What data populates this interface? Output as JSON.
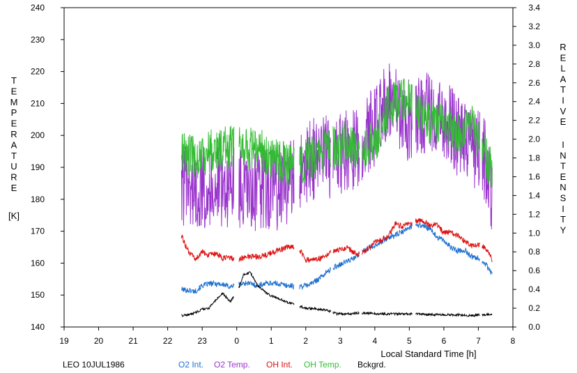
{
  "chart_data": {
    "type": "line",
    "title": "",
    "xlabel": "Local Standard Time [h]",
    "ylabel_left": "TEMPERATURE [K]",
    "ylabel_left_letters": [
      "T",
      "E",
      "M",
      "P",
      "E",
      "R",
      "A",
      "T",
      "U",
      "R",
      "E"
    ],
    "ylabel_left_unit": "[K]",
    "ylabel_right_letters_1": [
      "R",
      "E",
      "L",
      "A",
      "T",
      "I",
      "V",
      "E"
    ],
    "ylabel_right_letters_2": [
      "I",
      "N",
      "T",
      "E",
      "N",
      "S",
      "I",
      "T",
      "Y"
    ],
    "xlim": [
      19,
      32
    ],
    "x_tick_values": [
      19,
      20,
      21,
      22,
      23,
      24,
      25,
      26,
      27,
      28,
      29,
      30,
      31,
      32
    ],
    "x_tick_labels": [
      "19",
      "20",
      "21",
      "22",
      "23",
      "0",
      "1",
      "2",
      "3",
      "4",
      "5",
      "6",
      "7",
      "8"
    ],
    "ylim_left": [
      140,
      240
    ],
    "y_left_ticks": [
      "140",
      "150",
      "160",
      "170",
      "180",
      "190",
      "200",
      "210",
      "220",
      "230",
      "240"
    ],
    "ylim_right": [
      0,
      3.4
    ],
    "y_right_ticks": [
      "0.0",
      "0.2",
      "0.4",
      "0.6",
      "0.8",
      "1.0",
      "1.2",
      "1.4",
      "1.6",
      "1.8",
      "2.0",
      "2.2",
      "2.4",
      "2.6",
      "2.8",
      "3.0",
      "3.2",
      "3.4"
    ],
    "grid": false,
    "station_label": "LEO 10JUL1986",
    "series": [
      {
        "name": "O2 Int.",
        "axis": "right",
        "color": "#1c6fd1",
        "noise": 0.03,
        "x": [
          22.4,
          22.8,
          23.0,
          23.2,
          23.5,
          23.8,
          24.0,
          24.3,
          24.6,
          24.9,
          25.2,
          25.5,
          25.8,
          26.0,
          26.2,
          26.4,
          26.6,
          26.8,
          27.0,
          27.2,
          27.4,
          27.6,
          27.8,
          28.0,
          28.2,
          28.4,
          28.6,
          28.8,
          29.0,
          29.2,
          29.4,
          29.6,
          29.8,
          30.0,
          30.2,
          30.4,
          30.6,
          30.8,
          31.0,
          31.2,
          31.4
        ],
        "y": [
          0.4,
          0.38,
          0.44,
          0.46,
          0.46,
          0.43,
          0.45,
          0.47,
          0.44,
          0.47,
          0.46,
          0.44,
          0.43,
          0.44,
          0.47,
          0.52,
          0.58,
          0.63,
          0.67,
          0.7,
          0.73,
          0.79,
          0.84,
          0.87,
          0.91,
          0.95,
          0.98,
          1.01,
          1.06,
          1.09,
          1.08,
          1.04,
          0.96,
          0.92,
          0.85,
          0.81,
          0.82,
          0.75,
          0.74,
          0.67,
          0.56
        ],
        "gaps": [
          [
            23.92,
            24.06
          ],
          [
            25.66,
            25.82
          ],
          [
            26.72,
            26.78
          ],
          [
            27.55,
            27.62
          ],
          [
            29.08,
            29.18
          ],
          [
            31.04,
            31.1
          ]
        ]
      },
      {
        "name": "O2 Temp.",
        "axis": "left",
        "color": "#9933cc",
        "noise": 13,
        "x": [
          22.4,
          22.8,
          23.2,
          23.6,
          24.0,
          24.4,
          24.8,
          25.2,
          25.6,
          26.0,
          26.4,
          26.8,
          27.2,
          27.6,
          28.0,
          28.4,
          28.8,
          29.2,
          29.6,
          30.0,
          30.4,
          30.8,
          31.0,
          31.2,
          31.4
        ],
        "y": [
          185,
          183,
          184,
          184,
          184,
          181,
          184,
          183,
          186,
          191,
          194,
          193,
          195,
          197,
          203,
          213,
          205,
          205,
          208,
          206,
          200,
          196,
          195,
          192,
          182
        ],
        "gaps": [
          [
            23.92,
            24.06
          ],
          [
            25.66,
            25.82
          ],
          [
            26.72,
            26.78
          ],
          [
            27.55,
            27.62
          ],
          [
            29.08,
            29.18
          ],
          [
            31.04,
            31.1
          ]
        ]
      },
      {
        "name": "OH Int.",
        "axis": "right",
        "color": "#dd1111",
        "noise": 0.03,
        "x": [
          22.4,
          22.6,
          22.8,
          23.0,
          23.2,
          23.4,
          23.6,
          23.8,
          24.0,
          24.3,
          24.6,
          24.9,
          25.2,
          25.5,
          25.8,
          26.0,
          26.2,
          26.4,
          26.6,
          26.8,
          27.0,
          27.2,
          27.4,
          27.6,
          27.8,
          28.0,
          28.2,
          28.4,
          28.6,
          28.8,
          29.0,
          29.2,
          29.4,
          29.6,
          29.8,
          30.0,
          30.2,
          30.4,
          30.6,
          30.8,
          31.0,
          31.2,
          31.4
        ],
        "y": [
          0.97,
          0.8,
          0.72,
          0.8,
          0.76,
          0.78,
          0.73,
          0.74,
          0.71,
          0.75,
          0.75,
          0.77,
          0.82,
          0.85,
          0.84,
          0.71,
          0.72,
          0.73,
          0.77,
          0.81,
          0.82,
          0.85,
          0.79,
          0.78,
          0.82,
          0.9,
          0.93,
          0.97,
          1.1,
          1.07,
          1.1,
          1.13,
          1.13,
          1.08,
          1.09,
          1.0,
          1.01,
          0.97,
          0.92,
          0.86,
          0.88,
          0.84,
          0.72
        ],
        "gaps": [
          [
            23.92,
            24.06
          ],
          [
            25.66,
            25.82
          ],
          [
            26.72,
            26.78
          ],
          [
            27.55,
            27.62
          ],
          [
            29.08,
            29.18
          ],
          [
            31.04,
            31.1
          ]
        ]
      },
      {
        "name": "OH Temp.",
        "axis": "left",
        "color": "#33bb33",
        "noise": 7,
        "x": [
          22.4,
          22.8,
          23.2,
          23.6,
          24.0,
          24.4,
          24.8,
          25.2,
          25.6,
          26.0,
          26.4,
          26.8,
          27.2,
          27.6,
          28.0,
          28.4,
          28.8,
          29.2,
          29.6,
          30.0,
          30.4,
          30.8,
          31.0,
          31.2,
          31.4
        ],
        "y": [
          195,
          193,
          195,
          196,
          197,
          196,
          195,
          192,
          190,
          192,
          194,
          196,
          198,
          196,
          198,
          209,
          212,
          208,
          204,
          204,
          200,
          203,
          198,
          194,
          188
        ],
        "gaps": [
          [
            23.92,
            24.06
          ],
          [
            25.66,
            25.82
          ],
          [
            26.72,
            26.78
          ],
          [
            27.55,
            27.62
          ],
          [
            29.08,
            29.18
          ],
          [
            31.04,
            31.1
          ]
        ]
      },
      {
        "name": "Bckgrd.",
        "axis": "right",
        "color": "#000000",
        "noise": 0.012,
        "x": [
          22.4,
          22.6,
          22.8,
          23.0,
          23.2,
          23.4,
          23.6,
          23.8,
          24.0,
          24.2,
          24.4,
          24.6,
          24.8,
          25.0,
          25.2,
          25.4,
          25.6,
          25.8,
          26.0,
          26.3,
          26.6,
          26.9,
          27.2,
          27.6,
          28.0,
          28.4,
          28.8,
          29.2,
          29.6,
          30.0,
          30.4,
          30.8,
          31.0,
          31.2,
          31.4
        ],
        "y": [
          0.12,
          0.13,
          0.15,
          0.19,
          0.2,
          0.29,
          0.36,
          0.27,
          0.35,
          0.56,
          0.58,
          0.44,
          0.38,
          0.33,
          0.31,
          0.27,
          0.25,
          0.22,
          0.2,
          0.19,
          0.18,
          0.14,
          0.14,
          0.15,
          0.14,
          0.14,
          0.14,
          0.14,
          0.13,
          0.13,
          0.13,
          0.12,
          0.13,
          0.13,
          0.13
        ],
        "gaps": [
          [
            23.92,
            24.06
          ],
          [
            25.66,
            25.82
          ],
          [
            26.72,
            26.78
          ],
          [
            27.55,
            27.62
          ],
          [
            29.08,
            29.18
          ],
          [
            31.04,
            31.1
          ]
        ]
      }
    ]
  }
}
